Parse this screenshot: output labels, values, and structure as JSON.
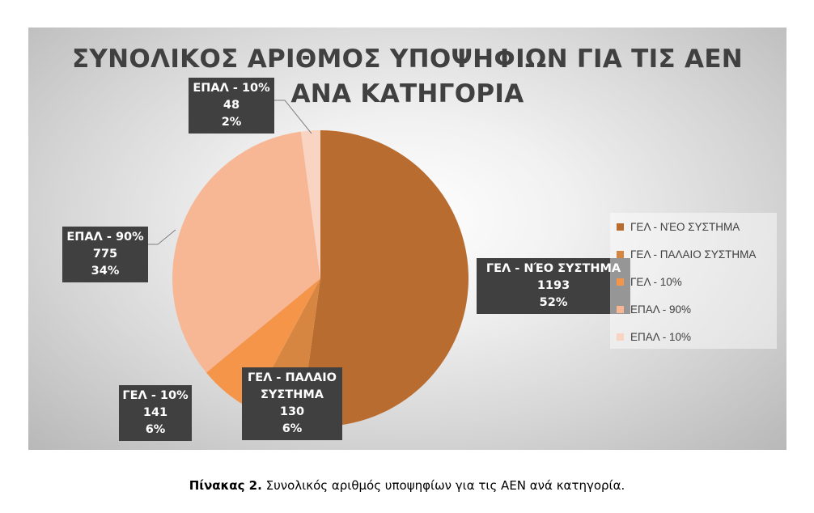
{
  "chart_data": {
    "type": "pie",
    "title_lines": [
      "ΣΥΝΟΛΙΚΟΣ ΑΡΙΘΜΟΣ ΥΠΟΨΗΦΙΩΝ ΓΙΑ ΤΙΣ ΑΕΝ",
      "ΑΝΑ ΚΑΤΗΓΟΡΙΑ"
    ],
    "legend_position": "right",
    "slices": [
      {
        "label": "ΓΕΛ - ΝΈΟ ΣΥΣΤΗΜΑ",
        "label_lines": [
          "ΓΕΛ - ΝΈΟ ΣΥΣΤΗΜΑ"
        ],
        "value": 1193,
        "percent": "52%",
        "color": "#b96c30"
      },
      {
        "label": "ΓΕΛ - ΠΑΛΑΙΟ ΣΥΣΤΗΜΑ",
        "label_lines": [
          "ΓΕΛ - ΠΑΛΑΙΟ",
          "ΣΥΣΤΗΜΑ"
        ],
        "value": 130,
        "percent": "6%",
        "color": "#d68640"
      },
      {
        "label": "ΓΕΛ - 10%",
        "label_lines": [
          "ΓΕΛ - 10%"
        ],
        "value": 141,
        "percent": "6%",
        "color": "#f5954a"
      },
      {
        "label": "ΕΠΑΛ - 90%",
        "label_lines": [
          "ΕΠΑΛ - 90%"
        ],
        "value": 775,
        "percent": "34%",
        "color": "#f7b694"
      },
      {
        "label": "ΕΠΑΛ - 10%",
        "label_lines": [
          "ΕΠΑΛ - 10%"
        ],
        "value": 48,
        "percent": "2%",
        "color": "#f9d4c2"
      }
    ]
  },
  "caption": {
    "prefix": "Πίνακας 2.",
    "text": " Συνολικός αριθμός υποψηφίων για τις ΑΕΝ ανά κατηγορία."
  }
}
